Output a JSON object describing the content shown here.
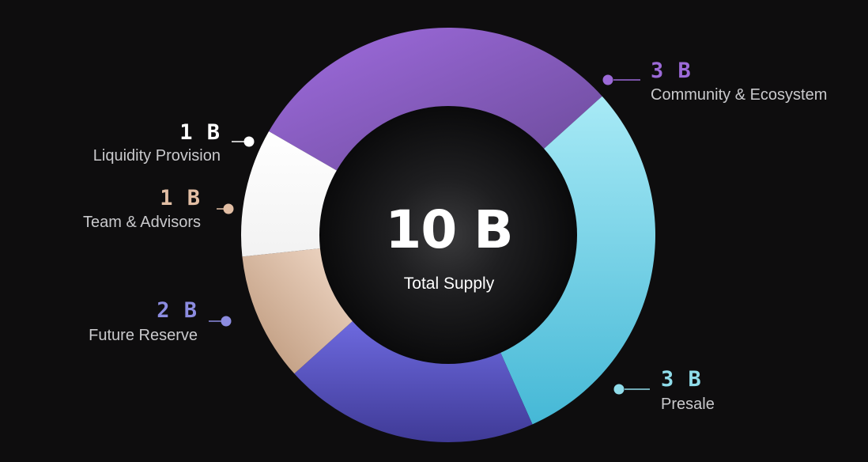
{
  "chart_data": {
    "type": "pie",
    "center_value": "10 B",
    "center_caption": "Total Supply",
    "slices": [
      {
        "name": "Community & Ecosystem",
        "value_label": "3 B",
        "value": 3,
        "color": "#8a5bcf",
        "label_color": "#9c6ad8"
      },
      {
        "name": "Presale",
        "value_label": "3 B",
        "value": 3,
        "color": "#64cce2",
        "label_color": "#8fdcea"
      },
      {
        "name": "Future Reserve",
        "value_label": "2 B",
        "value": 2,
        "color": "#5a56c6",
        "label_color": "#8c8ce0"
      },
      {
        "name": "Team & Advisors",
        "value_label": "1 B",
        "value": 1,
        "color": "#d8b89e",
        "label_color": "#e2bea4"
      },
      {
        "name": "Liquidity Provision",
        "value_label": "1 B",
        "value": 1,
        "color": "#ffffff",
        "label_color": "#ffffff"
      }
    ]
  }
}
